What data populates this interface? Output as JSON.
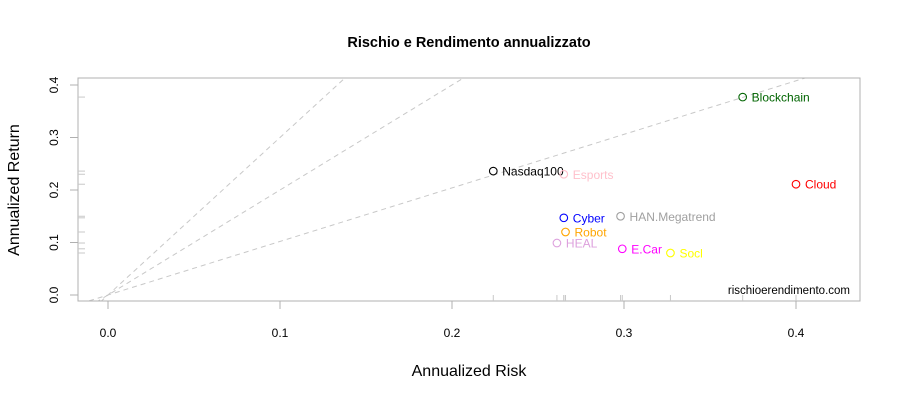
{
  "chart_data": {
    "type": "scatter",
    "title": "Rischio e Rendimento annualizzato",
    "xlabel": "Annualized Risk",
    "ylabel": "Annualized Return",
    "xlim": [
      -0.016,
      0.438
    ],
    "ylim": [
      -0.012,
      0.413
    ],
    "x_ticks": [
      "0.0",
      "0.1",
      "0.2",
      "0.3",
      "0.4"
    ],
    "y_ticks": [
      "0.0",
      "0.1",
      "0.2",
      "0.3",
      "0.4"
    ],
    "grid": false,
    "legend": null,
    "annotation": "rischioerendimento.com",
    "reference_lines": [
      {
        "style": "dashed",
        "color": "#c8c8c8",
        "intercept": 0,
        "slope": 3.0
      },
      {
        "style": "dashed",
        "color": "#c8c8c8",
        "intercept": 0,
        "slope": 2.0
      },
      {
        "style": "dashed",
        "color": "#c8c8c8",
        "intercept": 0,
        "slope": 1.02
      }
    ],
    "points": [
      {
        "label": "Nasdaq100",
        "x": 0.224,
        "y": 0.236,
        "color": "#000000"
      },
      {
        "label": "Esports",
        "x": 0.265,
        "y": 0.23,
        "color": "#ffc0cb"
      },
      {
        "label": "Blockchain",
        "x": 0.369,
        "y": 0.377,
        "color": "#006400"
      },
      {
        "label": "Cloud",
        "x": 0.4,
        "y": 0.211,
        "color": "#ff0000"
      },
      {
        "label": "Cyber",
        "x": 0.265,
        "y": 0.147,
        "color": "#0000ff"
      },
      {
        "label": "HAN.Megatrend",
        "x": 0.298,
        "y": 0.15,
        "color": "#a0a0a0"
      },
      {
        "label": "Robot",
        "x": 0.266,
        "y": 0.12,
        "color": "#ffa500"
      },
      {
        "label": "HEAL",
        "x": 0.261,
        "y": 0.099,
        "color": "#dda0dd"
      },
      {
        "label": "E.Car",
        "x": 0.299,
        "y": 0.088,
        "color": "#ff00ff"
      },
      {
        "label": "Socl",
        "x": 0.327,
        "y": 0.08,
        "color": "#ffff00"
      }
    ],
    "rug": true
  }
}
